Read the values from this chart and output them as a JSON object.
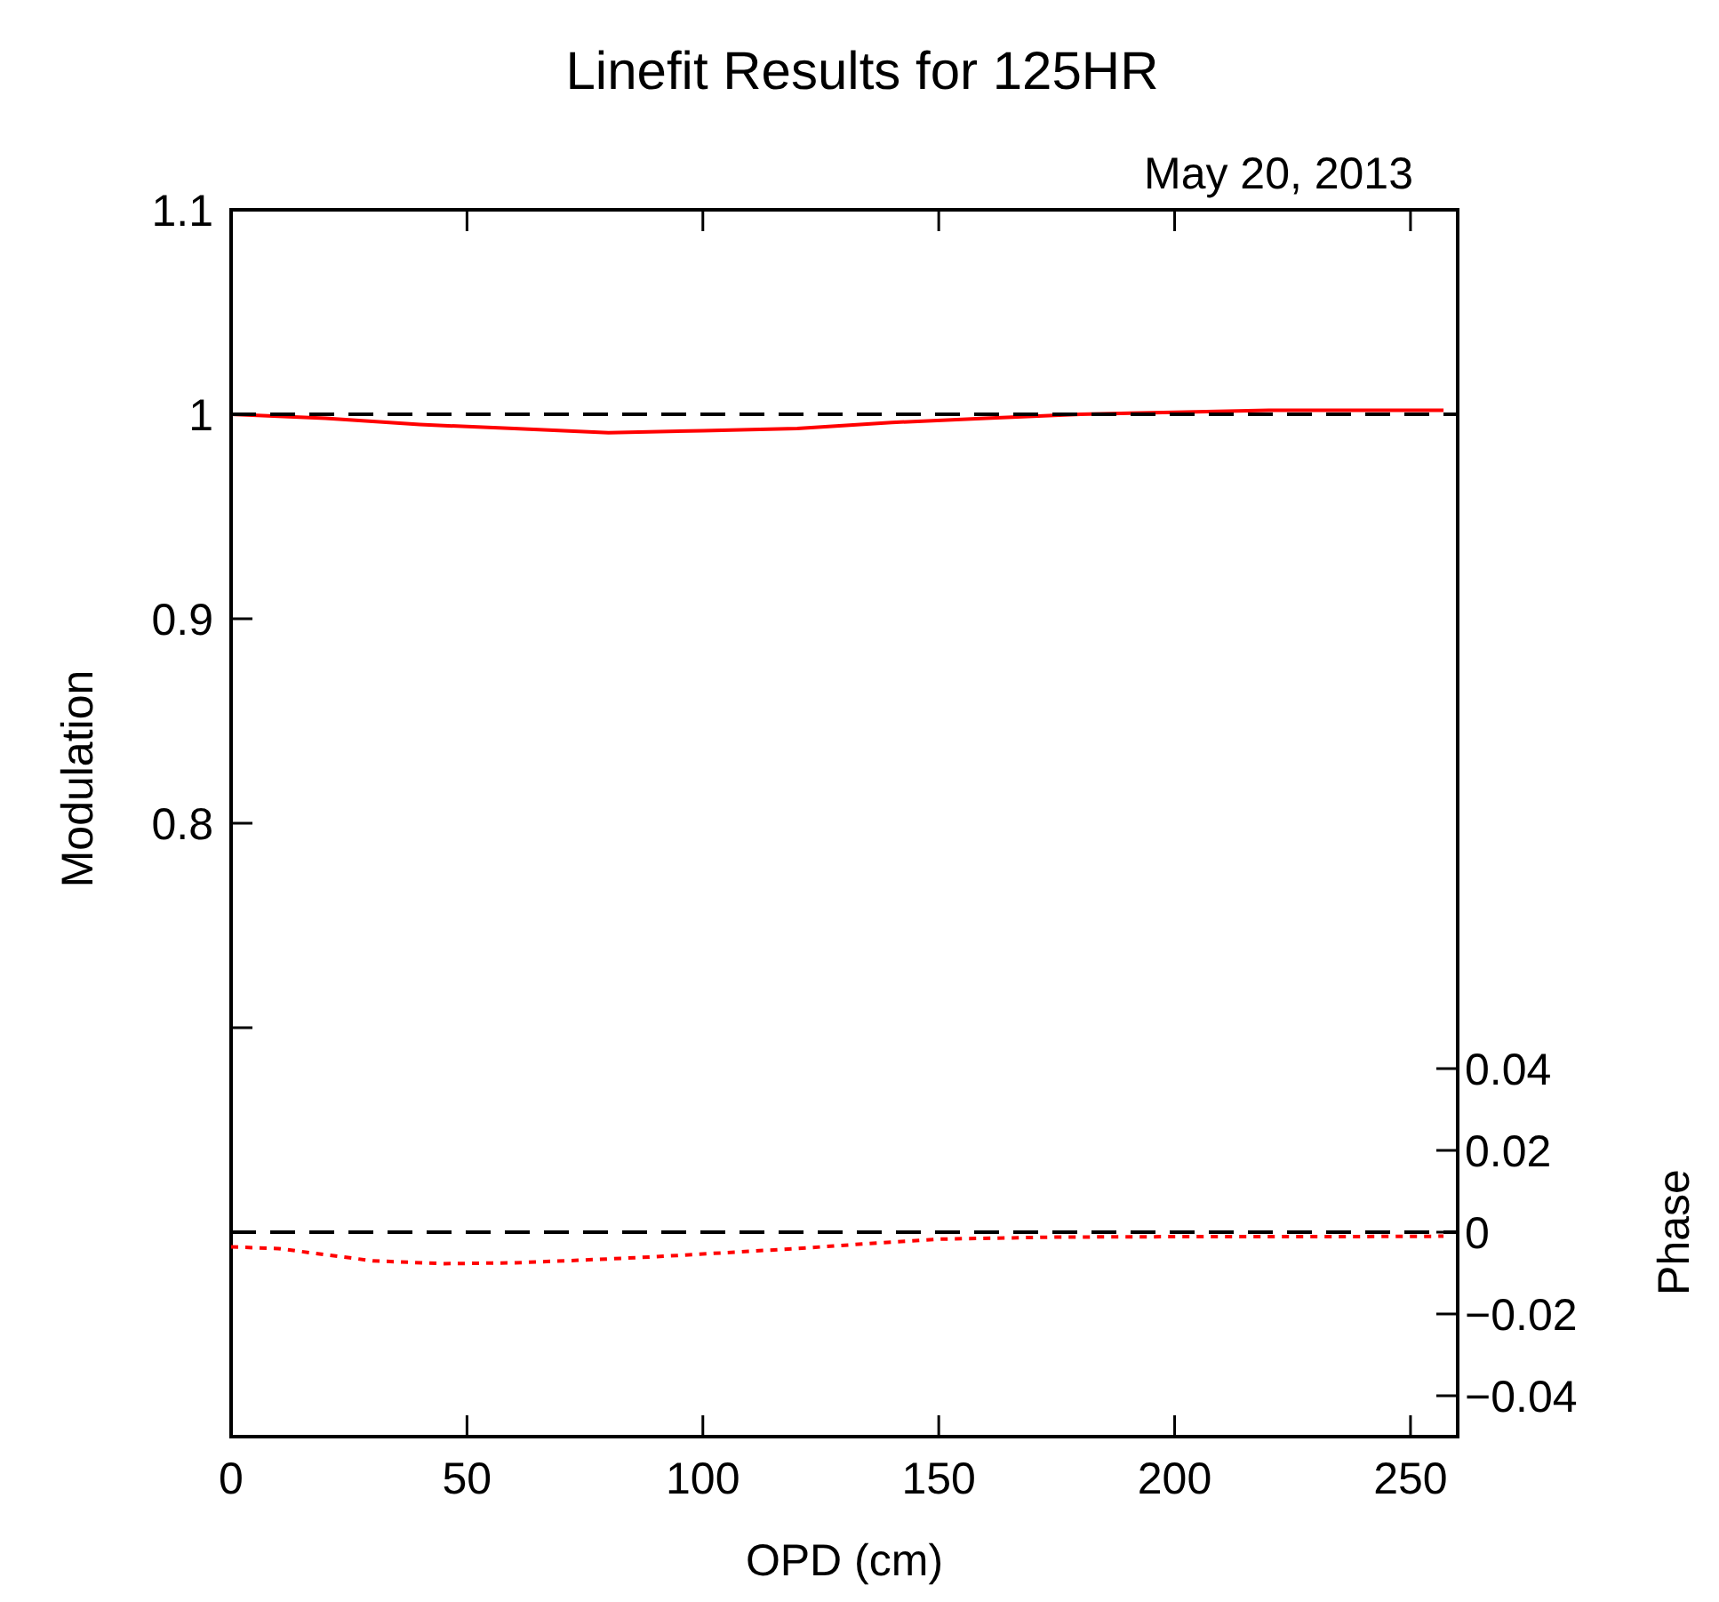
{
  "chart_data": {
    "type": "line",
    "title": "Linefit Results for 125HR",
    "subtitle": "May 20, 2013",
    "xlabel": "OPD (cm)",
    "ylabel": "Modulation",
    "y2label": "Phase",
    "xlim": [
      0,
      260
    ],
    "xticks": [
      0,
      50,
      100,
      150,
      200,
      250
    ],
    "ylim": [
      0.5,
      1.1
    ],
    "yticks": [
      {
        "value": 0.7,
        "label": null
      },
      0.8,
      0.9,
      1,
      1.1
    ],
    "y2lim": [
      -0.05,
      0.25
    ],
    "y2ticks": [
      {
        "value": -0.04,
        "label": "−0.04"
      },
      {
        "value": -0.02,
        "label": "−0.02"
      },
      0,
      0.02,
      0.04
    ],
    "series": [
      {
        "color": "#ff0000",
        "line_style": "solid",
        "x": [
          0,
          20,
          40,
          60,
          80,
          100,
          120,
          140,
          160,
          180,
          200,
          220,
          240,
          257
        ],
        "values": [
          1.0,
          0.998,
          0.995,
          0.993,
          0.991,
          0.992,
          0.993,
          0.996,
          0.998,
          1.0,
          1.001,
          1.002,
          1.002,
          1.002
        ]
      },
      {
        "color": "#000000",
        "line_style": "dashed",
        "x": [
          0,
          260
        ],
        "values": [
          1,
          1
        ]
      },
      {
        "color": "#000000",
        "line_style": "dashed",
        "axis": "y2",
        "x": [
          0,
          260
        ],
        "values": [
          0,
          0
        ]
      },
      {
        "color": "#ff0000",
        "line_style": "dotted",
        "axis": "y2",
        "x": [
          0,
          10,
          20,
          30,
          45,
          60,
          75,
          90,
          105,
          120,
          135,
          150,
          175,
          200,
          230,
          257
        ],
        "values": [
          -0.0036,
          -0.004,
          -0.0055,
          -0.007,
          -0.0077,
          -0.0075,
          -0.0068,
          -0.006,
          -0.005,
          -0.004,
          -0.0028,
          -0.0017,
          -0.0012,
          -0.0011,
          -0.0011,
          -0.001
        ]
      }
    ]
  }
}
